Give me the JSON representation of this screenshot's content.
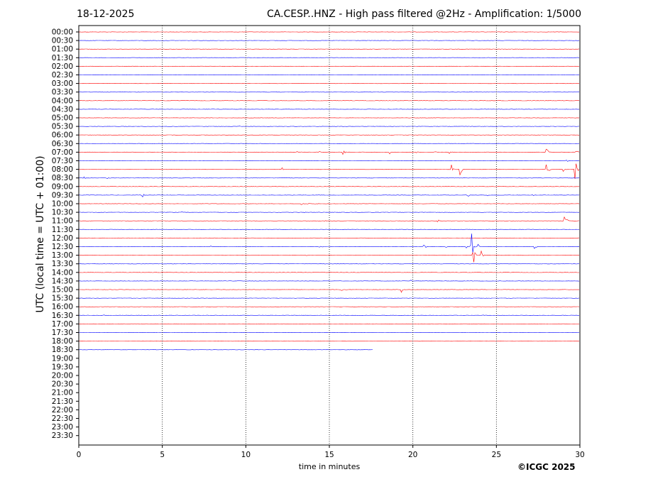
{
  "header": {
    "date": "18-12-2025",
    "title": "CA.CESP..HNZ - High pass filtered @2Hz - Amplification: 1/5000"
  },
  "footer": {
    "copyright": "©ICGC 2025"
  },
  "colors": {
    "odd_trace": "#ff0000",
    "even_trace": "#0000ff",
    "grid": "#000000"
  },
  "chart_data": {
    "type": "line",
    "title": "CA.CESP..HNZ - High pass filtered @2Hz - Amplification: 1/5000",
    "xlabel": "time in minutes",
    "ylabel": "UTC (local time = UTC + 01:00)",
    "xlim": [
      0,
      30
    ],
    "xticks": [
      0,
      5,
      10,
      15,
      20,
      25,
      30
    ],
    "vertical_grid": [
      5,
      10,
      15,
      20,
      25
    ],
    "grid": true,
    "rows": [
      "00:00",
      "00:30",
      "01:00",
      "01:30",
      "02:00",
      "02:30",
      "03:00",
      "03:30",
      "04:00",
      "04:30",
      "05:00",
      "05:30",
      "06:00",
      "06:30",
      "07:00",
      "07:30",
      "08:00",
      "08:30",
      "09:00",
      "09:30",
      "10:00",
      "10:30",
      "11:00",
      "11:30",
      "12:00",
      "12:30",
      "13:00",
      "13:30",
      "14:00",
      "14:30",
      "15:00",
      "15:30",
      "16:00",
      "16:30",
      "17:00",
      "17:30",
      "18:00",
      "18:30",
      "19:00",
      "19:30",
      "20:00",
      "20:30",
      "21:00",
      "21:30",
      "22:00",
      "22:30",
      "23:00",
      "23:30"
    ],
    "trace_colors": [
      "#ff0000",
      "#0000ff"
    ],
    "traces": [
      {
        "row": "00:00",
        "end": 30,
        "events": []
      },
      {
        "row": "00:30",
        "end": 30,
        "events": []
      },
      {
        "row": "01:00",
        "end": 30,
        "events": [
          {
            "t": 14.2,
            "amp": 0.12
          }
        ]
      },
      {
        "row": "01:30",
        "end": 30,
        "events": []
      },
      {
        "row": "02:00",
        "end": 30,
        "events": []
      },
      {
        "row": "02:30",
        "end": 30,
        "events": []
      },
      {
        "row": "03:00",
        "end": 30,
        "events": []
      },
      {
        "row": "03:30",
        "end": 30,
        "events": []
      },
      {
        "row": "04:00",
        "end": 30,
        "events": []
      },
      {
        "row": "04:30",
        "end": 30,
        "events": []
      },
      {
        "row": "05:00",
        "end": 30,
        "events": []
      },
      {
        "row": "05:30",
        "end": 30,
        "events": [
          {
            "t": 14.6,
            "amp": 0.12
          },
          {
            "t": 9.6,
            "amp": 0.1
          }
        ]
      },
      {
        "row": "06:00",
        "end": 30,
        "events": []
      },
      {
        "row": "06:30",
        "end": 30,
        "events": []
      },
      {
        "row": "07:00",
        "end": 30,
        "events": [
          {
            "t": 13.1,
            "amp": 0.5
          },
          {
            "t": 14.4,
            "amp": 0.2
          },
          {
            "t": 15.8,
            "amp": 0.9
          },
          {
            "t": 16.9,
            "amp": 0.2
          },
          {
            "t": 18.6,
            "amp": 0.4
          },
          {
            "t": 20.2,
            "amp": 0.3
          },
          {
            "t": 21.3,
            "amp": 0.3
          },
          {
            "t": 22.2,
            "amp": 0.4
          },
          {
            "t": 28.0,
            "amp": 1.2
          },
          {
            "t": 29.8,
            "amp": 0.6
          }
        ]
      },
      {
        "row": "07:30",
        "end": 30,
        "events": [
          {
            "t": 29.2,
            "amp": 0.3
          }
        ]
      },
      {
        "row": "08:00",
        "end": 30,
        "events": [
          {
            "t": 12.2,
            "amp": 0.6
          },
          {
            "t": 22.3,
            "amp": 0.8
          },
          {
            "t": 22.8,
            "amp": 1.6
          },
          {
            "t": 28.0,
            "amp": 2.6
          },
          {
            "t": 29.0,
            "amp": 0.4
          },
          {
            "t": 29.7,
            "amp": 2.8
          }
        ]
      },
      {
        "row": "08:30",
        "end": 30,
        "events": [
          {
            "t": 0.3,
            "amp": 0.3
          },
          {
            "t": 1.7,
            "amp": 0.3
          }
        ]
      },
      {
        "row": "09:00",
        "end": 30,
        "events": [
          {
            "t": 5.2,
            "amp": 0.1
          }
        ]
      },
      {
        "row": "09:30",
        "end": 30,
        "events": [
          {
            "t": 3.8,
            "amp": 0.5
          },
          {
            "t": 12.8,
            "amp": 0.2
          },
          {
            "t": 23.3,
            "amp": 0.3
          },
          {
            "t": 24.5,
            "amp": 0.2
          },
          {
            "t": 27.1,
            "amp": 0.3
          }
        ]
      },
      {
        "row": "10:00",
        "end": 30,
        "events": [
          {
            "t": 13.3,
            "amp": 0.3
          },
          {
            "t": 13.7,
            "amp": 0.2
          },
          {
            "t": 14.1,
            "amp": 0.2
          },
          {
            "t": 3.1,
            "amp": 0.1
          },
          {
            "t": 5.7,
            "amp": 0.1
          },
          {
            "t": 20.9,
            "amp": 0.2
          }
        ]
      },
      {
        "row": "10:30",
        "end": 30,
        "events": [
          {
            "t": 6.2,
            "amp": 0.1
          },
          {
            "t": 13.5,
            "amp": 0.1
          },
          {
            "t": 18.6,
            "amp": 0.1
          }
        ]
      },
      {
        "row": "11:00",
        "end": 30,
        "events": [
          {
            "t": 18.8,
            "amp": 0.2
          },
          {
            "t": 21.5,
            "amp": 0.2
          },
          {
            "t": 14.8,
            "amp": 0.1
          },
          {
            "t": 29.1,
            "amp": 2.4
          }
        ]
      },
      {
        "row": "11:30",
        "end": 30,
        "events": [
          {
            "t": 4.6,
            "amp": 0.1
          }
        ]
      },
      {
        "row": "12:00",
        "end": 30,
        "events": []
      },
      {
        "row": "12:30",
        "end": 30,
        "events": [
          {
            "t": 20.6,
            "amp": 2.6
          },
          {
            "t": 22.0,
            "amp": 0.2
          },
          {
            "t": 23.2,
            "amp": 0.3
          },
          {
            "t": 23.5,
            "amp": 3.4
          },
          {
            "t": 23.9,
            "amp": 0.5
          },
          {
            "t": 27.3,
            "amp": 0.5
          },
          {
            "t": 14.4,
            "amp": 0.2
          },
          {
            "t": 7.9,
            "amp": 0.1
          }
        ]
      },
      {
        "row": "13:00",
        "end": 30,
        "events": [
          {
            "t": 23.6,
            "amp": 2.0
          },
          {
            "t": 24.1,
            "amp": 1.7
          },
          {
            "t": 13.6,
            "amp": 0.1
          }
        ]
      },
      {
        "row": "13:30",
        "end": 30,
        "events": []
      },
      {
        "row": "14:00",
        "end": 30,
        "events": []
      },
      {
        "row": "14:30",
        "end": 30,
        "events": [
          {
            "t": 19.9,
            "amp": 0.2
          }
        ]
      },
      {
        "row": "15:00",
        "end": 30,
        "events": [
          {
            "t": 15.7,
            "amp": 0.5
          },
          {
            "t": 19.3,
            "amp": 0.6
          }
        ]
      },
      {
        "row": "15:30",
        "end": 30,
        "events": [
          {
            "t": 2.5,
            "amp": 0.1
          }
        ]
      },
      {
        "row": "16:00",
        "end": 30,
        "events": [
          {
            "t": 4.2,
            "amp": 0.1
          }
        ]
      },
      {
        "row": "16:30",
        "end": 30,
        "events": [
          {
            "t": 1.5,
            "amp": 0.1
          },
          {
            "t": 24.2,
            "amp": 0.1
          }
        ]
      },
      {
        "row": "17:00",
        "end": 30,
        "events": []
      },
      {
        "row": "17:30",
        "end": 30,
        "events": []
      },
      {
        "row": "18:00",
        "end": 30,
        "events": []
      },
      {
        "row": "18:30",
        "end": 17.6,
        "events": []
      }
    ]
  }
}
